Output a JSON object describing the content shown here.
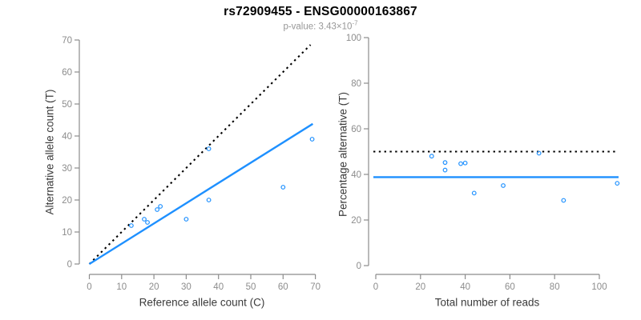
{
  "header": {
    "title": "rs72909455 - ENSG00000163867",
    "pvalue_text": "p-value: 3.43×10",
    "pvalue_exponent": "-7"
  },
  "colors": {
    "accent_blue": "#1E90FF",
    "axis_line_gray": "#8c8c8c",
    "tick_label_gray": "#8c8c8c",
    "dotted_line_black": "#000000"
  },
  "chart_data": [
    {
      "type": "scatter",
      "panel": "allele-counts",
      "xlabel": "Reference allele count (C)",
      "ylabel": "Alternative allele count (T)",
      "xlim": [
        0,
        70
      ],
      "ylim": [
        0,
        70
      ],
      "xticks": [
        0,
        10,
        20,
        30,
        40,
        50,
        60,
        70
      ],
      "yticks": [
        0,
        10,
        20,
        30,
        40,
        50,
        60,
        70
      ],
      "grid": false,
      "legend": null,
      "points": [
        [
          13,
          12
        ],
        [
          17,
          14
        ],
        [
          18,
          13
        ],
        [
          21,
          17
        ],
        [
          22,
          18
        ],
        [
          30,
          14
        ],
        [
          37,
          20
        ],
        [
          37,
          36
        ],
        [
          60,
          24
        ],
        [
          69,
          39
        ]
      ],
      "lines": [
        {
          "name": "identity-line",
          "style": "dotted",
          "color": "#000000",
          "from": [
            0,
            0
          ],
          "to": [
            68.5,
            68.5
          ]
        },
        {
          "name": "fit-line",
          "style": "solid",
          "color": "#1E90FF",
          "from": [
            0,
            0
          ],
          "to": [
            69.2,
            43.8
          ]
        }
      ]
    },
    {
      "type": "scatter",
      "panel": "percentage-vs-reads",
      "xlabel": "Total number of reads",
      "ylabel": "Percentage alternative (T)",
      "xlim": [
        0,
        110
      ],
      "ylim": [
        0,
        100
      ],
      "xticks": [
        0,
        20,
        40,
        60,
        80,
        100
      ],
      "yticks": [
        0,
        20,
        40,
        60,
        80,
        100
      ],
      "grid": false,
      "legend": null,
      "points": [
        [
          25,
          48.0
        ],
        [
          31,
          45.2
        ],
        [
          31,
          41.9
        ],
        [
          38,
          44.7
        ],
        [
          40,
          45.0
        ],
        [
          44,
          31.8
        ],
        [
          57,
          35.1
        ],
        [
          73,
          49.3
        ],
        [
          84,
          28.6
        ],
        [
          108,
          36.1
        ]
      ],
      "lines": [
        {
          "name": "fifty-percent-line",
          "style": "dotted",
          "color": "#000000",
          "y": 50
        },
        {
          "name": "mean-percentage-line",
          "style": "solid",
          "color": "#1E90FF",
          "y": 38.8
        }
      ]
    }
  ]
}
